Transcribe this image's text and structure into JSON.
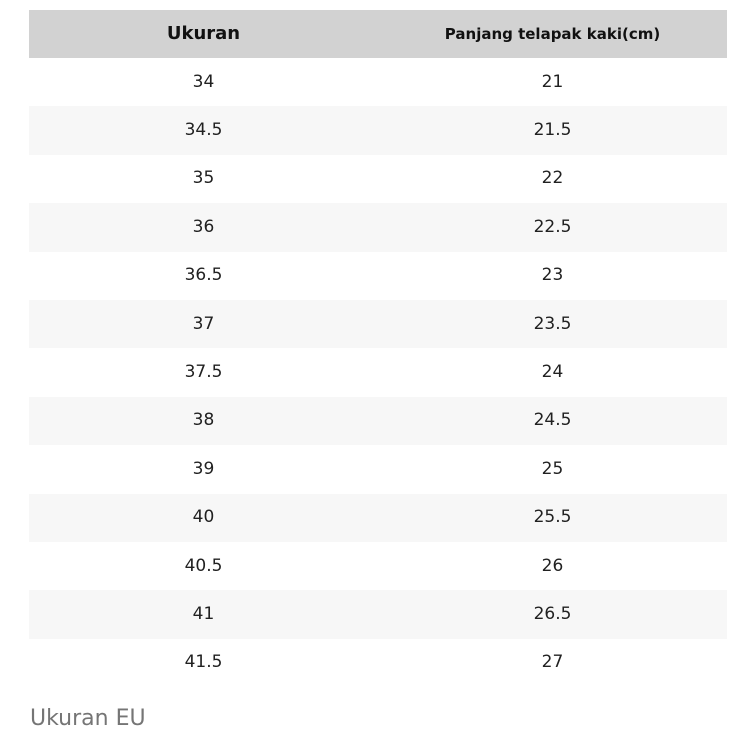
{
  "table": {
    "headers": [
      "Ukuran",
      "Panjang telapak kaki(cm)"
    ],
    "rows": [
      [
        "34",
        "21"
      ],
      [
        "34.5",
        "21.5"
      ],
      [
        "35",
        "22"
      ],
      [
        "36",
        "22.5"
      ],
      [
        "36.5",
        "23"
      ],
      [
        "37",
        "23.5"
      ],
      [
        "37.5",
        "24"
      ],
      [
        "38",
        "24.5"
      ],
      [
        "39",
        "25"
      ],
      [
        "40",
        "25.5"
      ],
      [
        "40.5",
        "26"
      ],
      [
        "41",
        "26.5"
      ],
      [
        "41.5",
        "27"
      ]
    ]
  },
  "caption": {
    "label": "Ukuran EU"
  },
  "colors": {
    "header_bg": "#d2d2d2",
    "stripe_bg": "#f7f7f7",
    "row_bg": "#ffffff",
    "text": "#212121",
    "caption_text": "#757575"
  }
}
